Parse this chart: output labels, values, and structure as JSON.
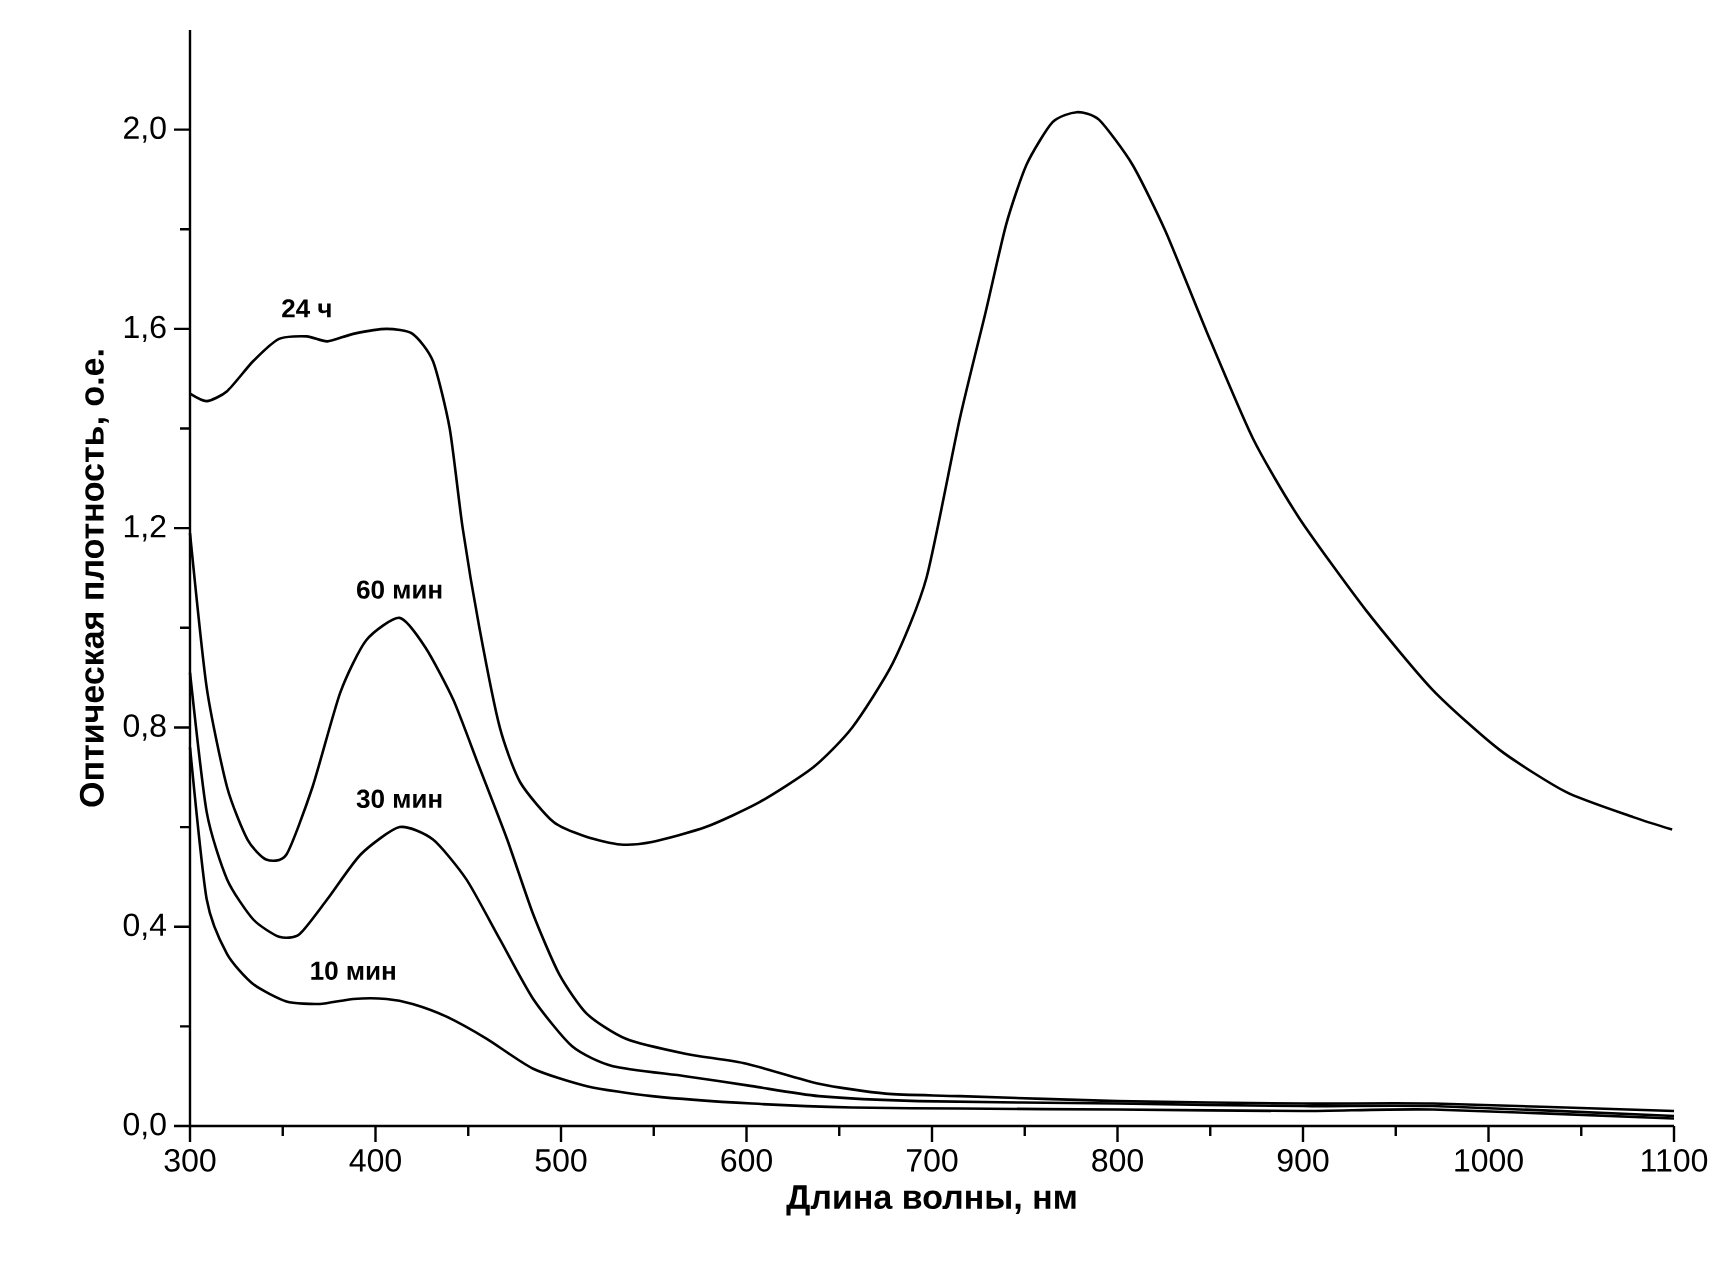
{
  "chart_data": {
    "type": "line",
    "xlabel": "Длина волны, нм",
    "ylabel": "Оптическая плотность, о.е.",
    "xlim": [
      300,
      1100
    ],
    "ylim": [
      0,
      2.2
    ],
    "xticks": [
      300,
      {
        "value": 350,
        "label": null
      },
      400,
      {
        "value": 450,
        "label": null
      },
      500,
      {
        "value": 550,
        "label": null
      },
      600,
      {
        "value": 650,
        "label": null
      },
      700,
      {
        "value": 750,
        "label": null
      },
      800,
      {
        "value": 850,
        "label": null
      },
      900,
      {
        "value": 950,
        "label": null
      },
      1000,
      {
        "value": 1050,
        "label": null
      },
      1100
    ],
    "yticks": [
      {
        "value": 0,
        "label": "0,0"
      },
      {
        "value": 0.2,
        "label": null
      },
      {
        "value": 0.4,
        "label": "0,4"
      },
      {
        "value": 0.6,
        "label": null
      },
      {
        "value": 0.8,
        "label": "0,8"
      },
      {
        "value": 1.0,
        "label": null
      },
      {
        "value": 1.2,
        "label": "1,2"
      },
      {
        "value": 1.4,
        "label": null
      },
      {
        "value": 1.6,
        "label": "1,6"
      },
      {
        "value": 1.8,
        "label": null
      },
      {
        "value": 2.0,
        "label": "2,0"
      }
    ],
    "grid": false,
    "legend": false,
    "marker": "none",
    "line_style": "solid",
    "series": [
      {
        "name": "24 ч",
        "color": "#000000",
        "x": [
          300,
          309,
          320,
          334,
          348,
          363,
          374,
          388,
          406,
          420,
          431,
          440,
          447,
          456,
          467,
          478,
          496,
          514,
          532,
          549,
          578,
          607,
          636,
          657,
          679,
          697,
          715,
          729,
          740,
          751,
          765,
          778,
          790,
          808,
          826,
          848,
          873,
          898,
          934,
          970,
          1006,
          1042,
          1078,
          1099
        ],
        "values": [
          1.47,
          1.455,
          1.475,
          1.535,
          1.58,
          1.585,
          1.575,
          1.59,
          1.6,
          1.59,
          1.535,
          1.4,
          1.2,
          1.0,
          0.8,
          0.69,
          0.61,
          0.58,
          0.565,
          0.57,
          0.6,
          0.65,
          0.72,
          0.8,
          0.93,
          1.1,
          1.42,
          1.635,
          1.81,
          1.93,
          2.015,
          2.035,
          2.02,
          1.93,
          1.795,
          1.595,
          1.38,
          1.22,
          1.035,
          0.875,
          0.755,
          0.67,
          0.62,
          0.595
        ]
      },
      {
        "name": "60 мин",
        "color": "#000000",
        "x": [
          300,
          309,
          320,
          331,
          341,
          352,
          366,
          381,
          395,
          413,
          427,
          442,
          456,
          471,
          485,
          499,
          514,
          535,
          567,
          600,
          639,
          675,
          715,
          800,
          900,
          970,
          1100
        ],
        "values": [
          1.19,
          0.88,
          0.68,
          0.575,
          0.535,
          0.545,
          0.68,
          0.87,
          0.975,
          1.02,
          0.96,
          0.855,
          0.72,
          0.575,
          0.425,
          0.305,
          0.225,
          0.175,
          0.145,
          0.125,
          0.085,
          0.065,
          0.06,
          0.05,
          0.045,
          0.045,
          0.03
        ]
      },
      {
        "name": "30 мин",
        "color": "#000000",
        "x": [
          300,
          309,
          320,
          334,
          348,
          359,
          374,
          392,
          413,
          431,
          449,
          467,
          485,
          506,
          528,
          567,
          603,
          639,
          693,
          800,
          900,
          970,
          1100
        ],
        "values": [
          0.91,
          0.63,
          0.495,
          0.415,
          0.38,
          0.385,
          0.455,
          0.545,
          0.6,
          0.575,
          0.495,
          0.375,
          0.255,
          0.16,
          0.12,
          0.1,
          0.08,
          0.06,
          0.05,
          0.045,
          0.04,
          0.04,
          0.02
        ]
      },
      {
        "name": "10 мин",
        "color": "#000000",
        "x": [
          300,
          309,
          320,
          334,
          352,
          370,
          388,
          406,
          420,
          438,
          460,
          485,
          514,
          549,
          603,
          657,
          715,
          800,
          900,
          970,
          1100
        ],
        "values": [
          0.76,
          0.455,
          0.345,
          0.285,
          0.25,
          0.245,
          0.255,
          0.255,
          0.245,
          0.22,
          0.175,
          0.115,
          0.08,
          0.06,
          0.045,
          0.037,
          0.035,
          0.033,
          0.03,
          0.033,
          0.015
        ]
      }
    ]
  }
}
